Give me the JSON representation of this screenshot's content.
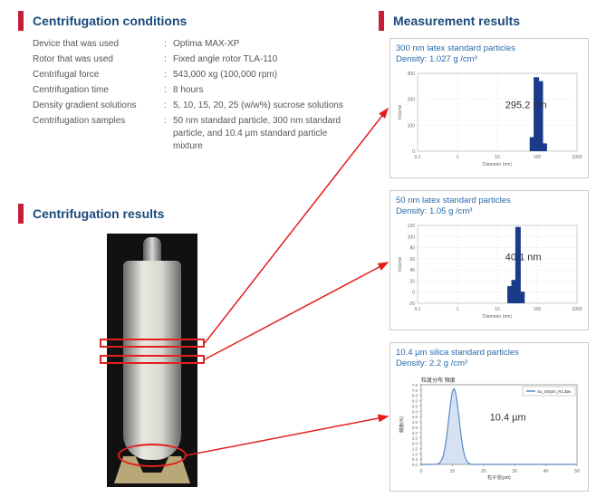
{
  "conditions": {
    "title": "Centrifugation conditions",
    "rows": [
      {
        "label": "Device that was used",
        "value": "Optima MAX-XP"
      },
      {
        "label": "Rotor that was used",
        "value": "Fixed angle rotor TLA-110"
      },
      {
        "label": "Centrifugal force",
        "value": "543,000 xg (100,000 rpm)"
      },
      {
        "label": "Centrifugation time",
        "value": "8 hours"
      },
      {
        "label": "Density gradient solutions",
        "value": "5, 10, 15, 20, 25 (w/w%) sucrose solutions"
      },
      {
        "label": "Centrifugation samples",
        "value": "50 nm standard particle, 300 nm standard particle, and 10.4 µm standard particle mixture"
      }
    ]
  },
  "results_title": "Centrifugation results",
  "measurement_title": "Measurement results",
  "charts": [
    {
      "title_line1": "300 nm latex standard particles",
      "title_line2": "Density: 1.027 g /cm³",
      "peak_label": "295.2 nm",
      "type": "bar-log",
      "xlabel": "Diameter (nm)",
      "ylabel": "Volume",
      "xticks": [
        "0.1",
        "1",
        "10",
        "100",
        "1000"
      ],
      "yticks": [
        "0",
        "100",
        "200",
        "300"
      ],
      "series_color": "#1a3a8a",
      "grid_color": "#d0d0d0",
      "bars": [
        {
          "x_frac": 0.72,
          "h_frac": 0.18
        },
        {
          "x_frac": 0.745,
          "h_frac": 0.95
        },
        {
          "x_frac": 0.77,
          "h_frac": 0.9
        },
        {
          "x_frac": 0.795,
          "h_frac": 0.1
        }
      ]
    },
    {
      "title_line1": "50 nm latex standard particles",
      "title_line2": "Density: 1.05 g /cm³",
      "peak_label": "40.1 nm",
      "type": "bar-log",
      "xlabel": "Diameter (nm)",
      "ylabel": "Volume",
      "xticks": [
        "0.1",
        "1",
        "10",
        "100",
        "1000"
      ],
      "yticks": [
        "-20",
        "0",
        "20",
        "40",
        "60",
        "80",
        "100",
        "120"
      ],
      "series_color": "#1a3a8a",
      "grid_color": "#d0d0d0",
      "bars": [
        {
          "x_frac": 0.58,
          "h_frac": 0.22
        },
        {
          "x_frac": 0.605,
          "h_frac": 0.3
        },
        {
          "x_frac": 0.63,
          "h_frac": 0.98
        },
        {
          "x_frac": 0.655,
          "h_frac": 0.15
        }
      ]
    },
    {
      "title_line1": "10.4 µm silica standard particles",
      "title_line2": "Density: 2.2 g /cm³",
      "peak_label": "10.4 µm",
      "type": "line",
      "xlabel": "粒子径(μm)",
      "ylabel": "頻度(%)",
      "legend": "Su_50rpm_R1.$av",
      "xticks": [
        "0",
        "10",
        "20",
        "30",
        "40",
        "50"
      ],
      "yticks": [
        "0.0",
        "0.5",
        "1.0",
        "1.5",
        "2.0",
        "2.5",
        "3.0",
        "3.5",
        "4.0",
        "4.5",
        "5.0",
        "5.5",
        "6.0",
        "6.5",
        "7.0",
        "7.5"
      ],
      "series_color": "#5a8ac8",
      "grid_color": "#aaaaaa",
      "title_inside": "粒度分布 頻度"
    }
  ],
  "colors": {
    "heading": "#1a4a7a",
    "accent_red": "#c41e3a",
    "arrow_red": "#e41e1e",
    "chart_title": "#2a6aa8"
  }
}
